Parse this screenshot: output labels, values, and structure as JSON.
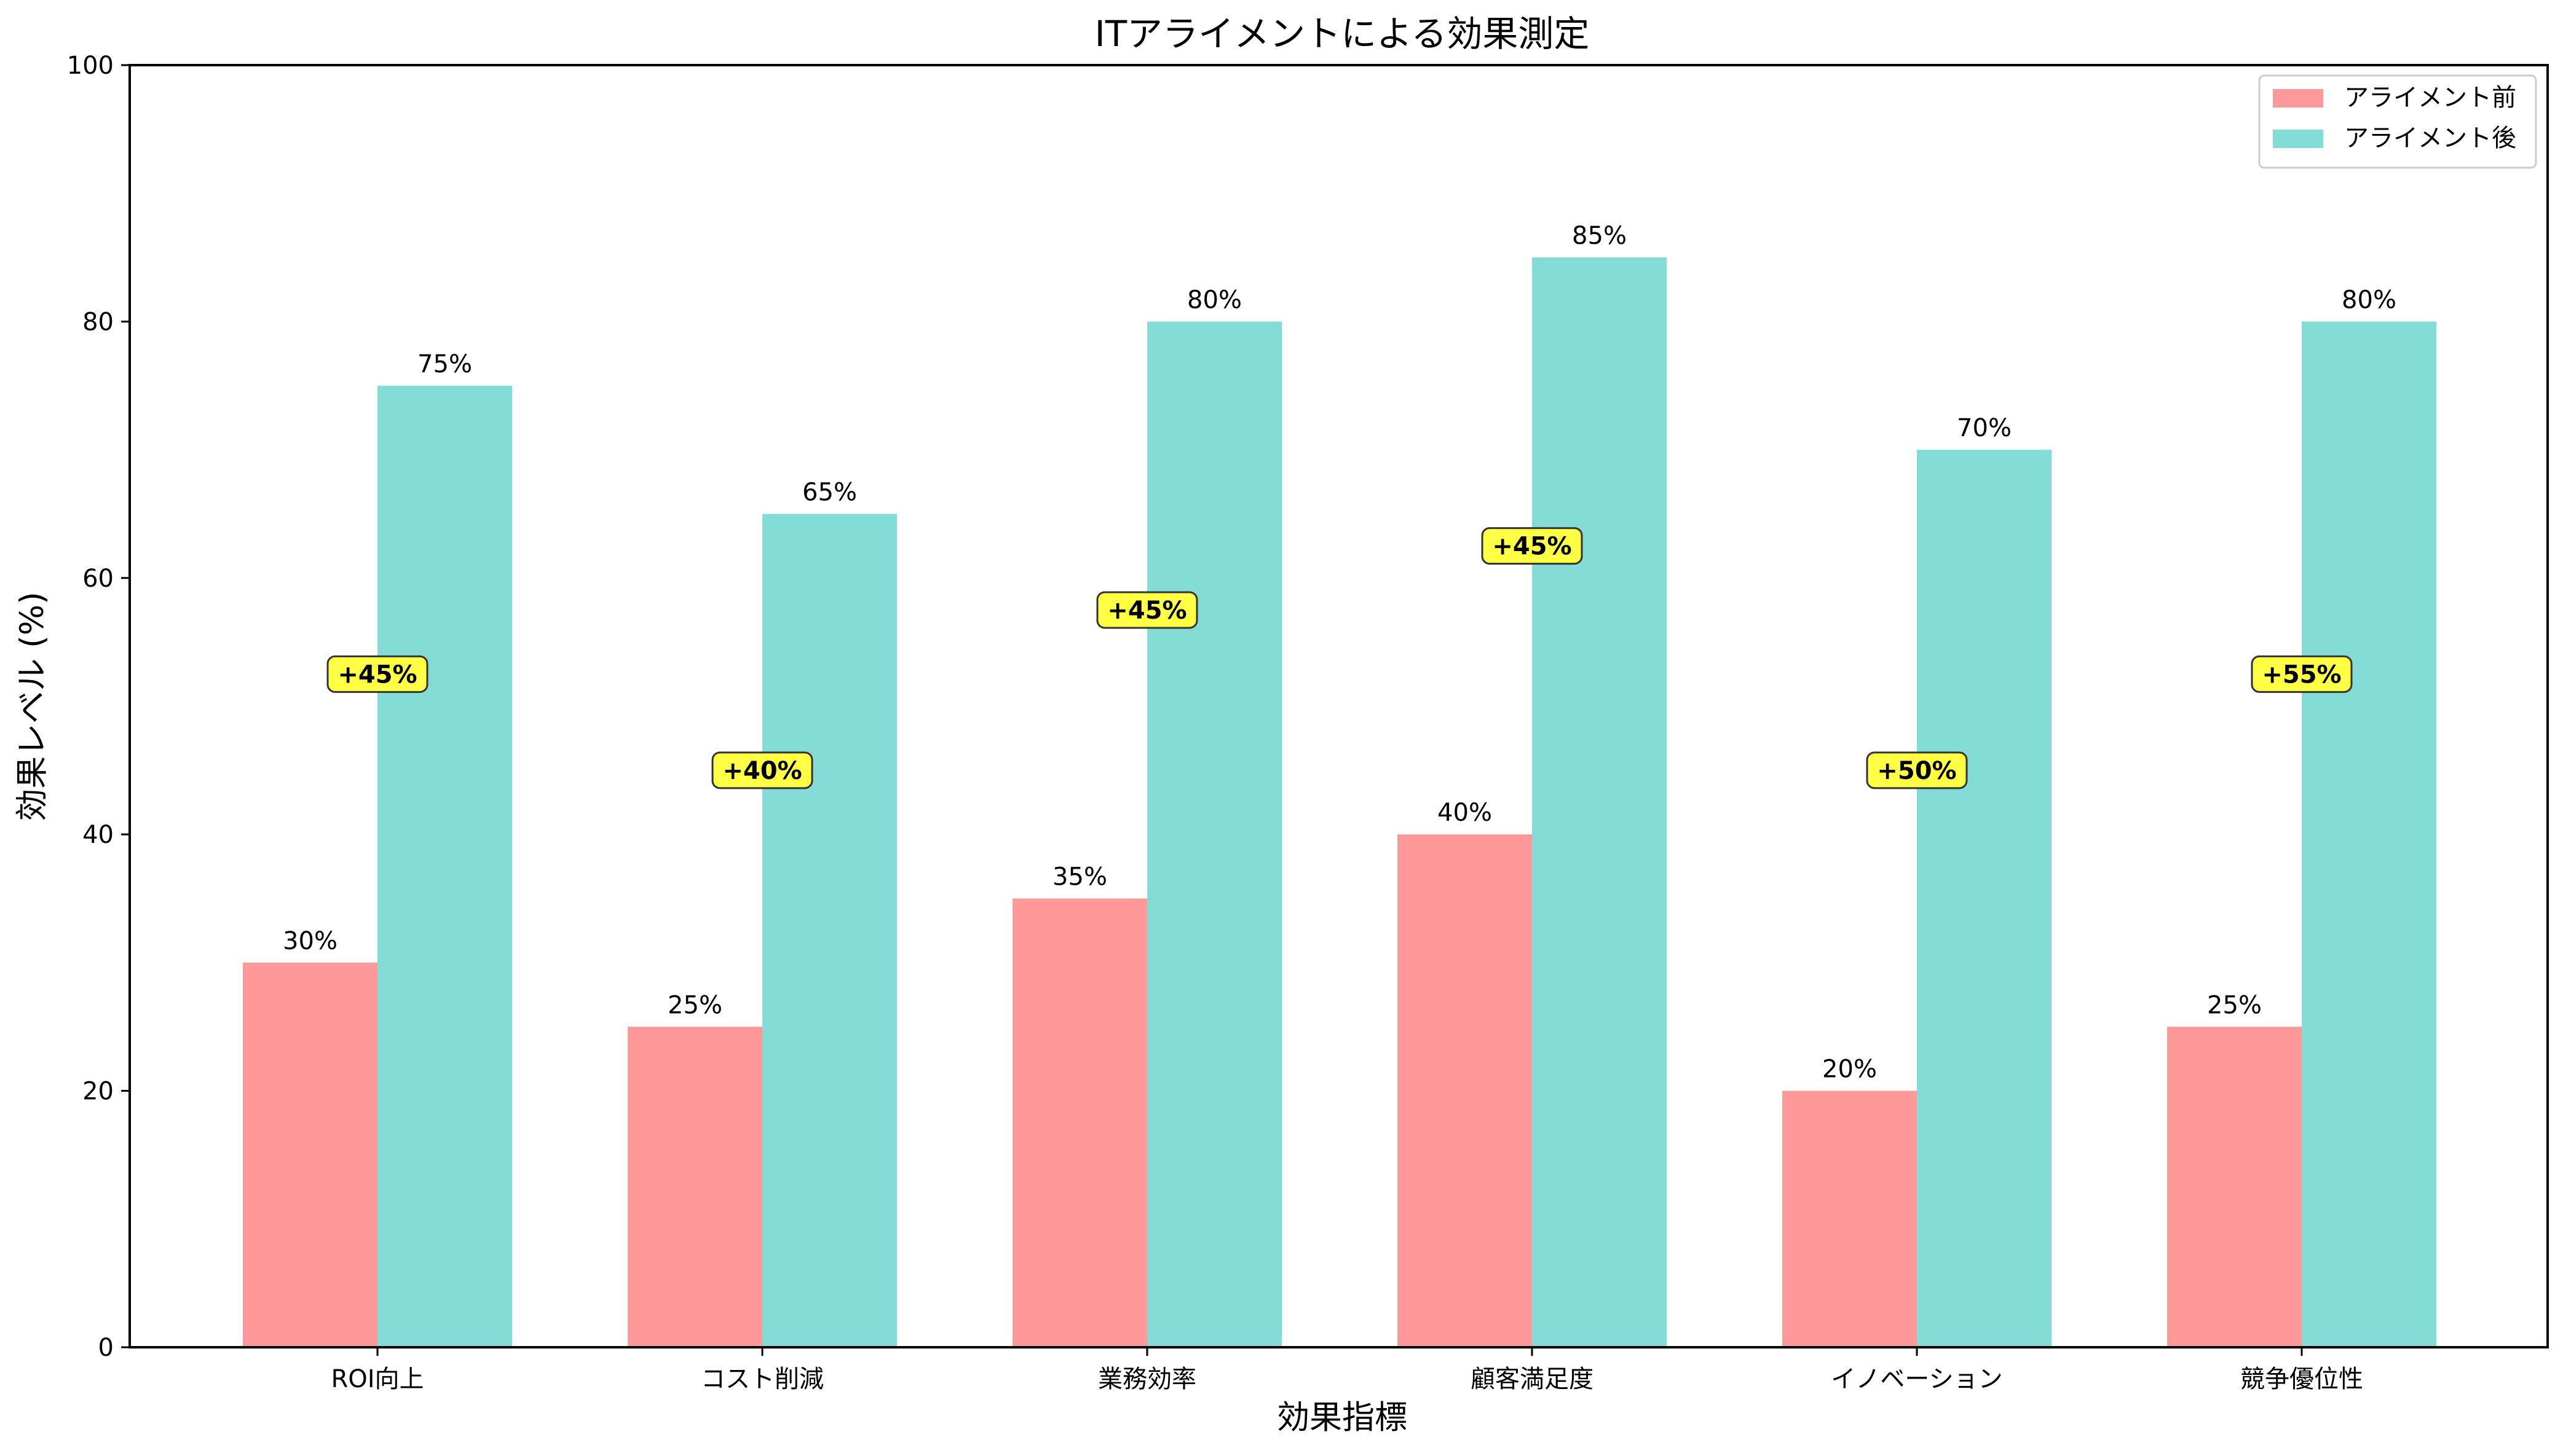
{
  "chart_data": {
    "type": "bar",
    "title": "ITアライメントによる効果測定",
    "xlabel": "効果指標",
    "ylabel": "効果レベル (%)",
    "ylim": [
      0,
      100
    ],
    "yticks": [
      0,
      20,
      40,
      60,
      80,
      100
    ],
    "grid": false,
    "legend_position": "top-right",
    "categories": [
      "ROI向上",
      "コスト削減",
      "業務効率",
      "顧客満足度",
      "イノベーション",
      "競争優位性"
    ],
    "series": [
      {
        "name": "アライメント前",
        "color": "#ff9999",
        "values": [
          30,
          25,
          35,
          40,
          20,
          25
        ],
        "data_labels": [
          "30%",
          "25%",
          "35%",
          "40%",
          "20%",
          "25%"
        ]
      },
      {
        "name": "アライメント後",
        "color": "#84dcd6",
        "values": [
          75,
          65,
          80,
          85,
          70,
          80
        ],
        "data_labels": [
          "75%",
          "65%",
          "80%",
          "85%",
          "70%",
          "80%"
        ]
      }
    ],
    "improvements": [
      "+45%",
      "+40%",
      "+45%",
      "+45%",
      "+50%",
      "+55%"
    ],
    "improvement_badge_color": "#ffff44"
  }
}
